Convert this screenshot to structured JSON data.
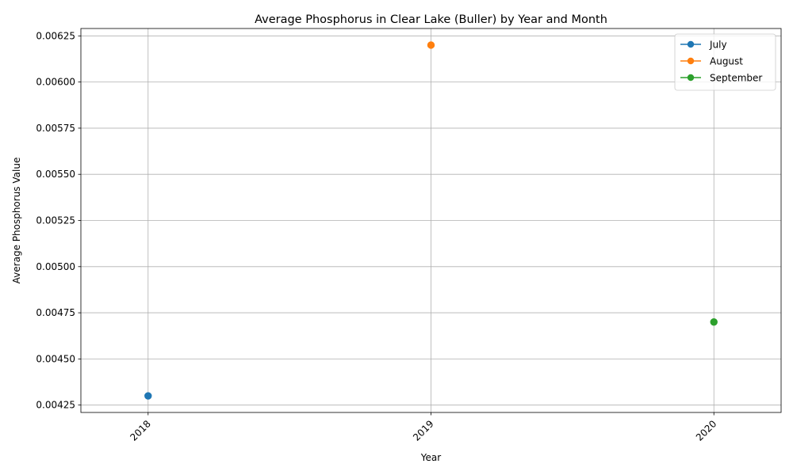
{
  "chart_data": {
    "type": "line",
    "title": "Average Phosphorus in Clear Lake (Buller) by Year and Month",
    "xlabel": "Year",
    "ylabel": "Average Phosphorus Value",
    "categories": [
      "2018",
      "2019",
      "2020"
    ],
    "y_ticks": [
      "0.00425",
      "0.00450",
      "0.00475",
      "0.00500",
      "0.00525",
      "0.00550",
      "0.00575",
      "0.00600",
      "0.00625"
    ],
    "ylim": [
      0.00421,
      0.00629
    ],
    "grid": true,
    "legend_position": "top-right",
    "series": [
      {
        "name": "July",
        "color": "#1f77b4",
        "x": [
          "2018"
        ],
        "values": [
          0.0043
        ]
      },
      {
        "name": "August",
        "color": "#ff7f0e",
        "x": [
          "2019"
        ],
        "values": [
          0.0062
        ]
      },
      {
        "name": "September",
        "color": "#2ca02c",
        "x": [
          "2020"
        ],
        "values": [
          0.0047
        ]
      }
    ]
  }
}
